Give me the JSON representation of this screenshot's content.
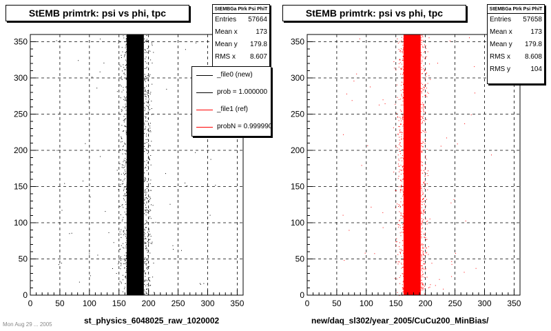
{
  "chart_data": [
    {
      "type": "scatter",
      "title": "StEMB primtrk: psi vs phi, tpc",
      "xlabel": "st_physics_6048025_raw_1020002",
      "ylabel": "",
      "xlim": [
        0,
        360
      ],
      "ylim": [
        0,
        360
      ],
      "xticks": [
        "0",
        "50",
        "100",
        "150",
        "200",
        "250",
        "300",
        "350"
      ],
      "yticks": [
        "0",
        "50",
        "100",
        "150",
        "200",
        "250",
        "300",
        "350"
      ],
      "grid": true,
      "series": [
        {
          "name": "_file0 (new)",
          "color": "#000000",
          "band": {
            "core_x": [
              163,
              192
            ],
            "spread_x": [
              150,
              215
            ],
            "y": [
              0,
              360
            ]
          }
        }
      ],
      "stats": {
        "header": "StEMBGa PIrk Psi PhiT",
        "rows": [
          {
            "label": "Entries",
            "value": "57664"
          },
          {
            "label": "Mean x",
            "value": "173"
          },
          {
            "label": "Mean y",
            "value": "179.8"
          },
          {
            "label": "RMS x",
            "value": "8.607"
          }
        ]
      },
      "legend": {
        "position": "right",
        "items": [
          {
            "label": "_file0 (new)",
            "color": "#000000"
          },
          {
            "label": "prob = 1.000000",
            "color": "#000000"
          },
          {
            "label": "_file1 (ref)",
            "color": "#ff0000"
          },
          {
            "label": "probN = 0.999990",
            "color": "#ff0000"
          }
        ]
      }
    },
    {
      "type": "scatter",
      "title": "StEMB primtrk: psi vs phi, tpc",
      "xlabel": "new/daq_sl302/year_2005/CuCu200_MinBias/",
      "ylabel": "",
      "xlim": [
        0,
        360
      ],
      "ylim": [
        0,
        360
      ],
      "xticks": [
        "0",
        "50",
        "100",
        "150",
        "200",
        "250",
        "300",
        "350"
      ],
      "yticks": [
        "0",
        "50",
        "100",
        "150",
        "200",
        "250",
        "300",
        "350"
      ],
      "grid": true,
      "series": [
        {
          "name": "_file1 (ref)",
          "color": "#ff0000",
          "band": {
            "core_x": [
              163,
              192
            ],
            "spread_x": [
              150,
              215
            ],
            "y": [
              0,
              360
            ]
          }
        }
      ],
      "stats": {
        "header": "StEMBGa PIrk Psi PhiT",
        "rows": [
          {
            "label": "Entries",
            "value": "57658"
          },
          {
            "label": "Mean x",
            "value": "173"
          },
          {
            "label": "Mean y",
            "value": "179.8"
          },
          {
            "label": "RMS x",
            "value": "8.608"
          },
          {
            "label": "RMS y",
            "value": "104"
          }
        ]
      }
    }
  ],
  "footer": "Mon Aug 29 ... 2005"
}
